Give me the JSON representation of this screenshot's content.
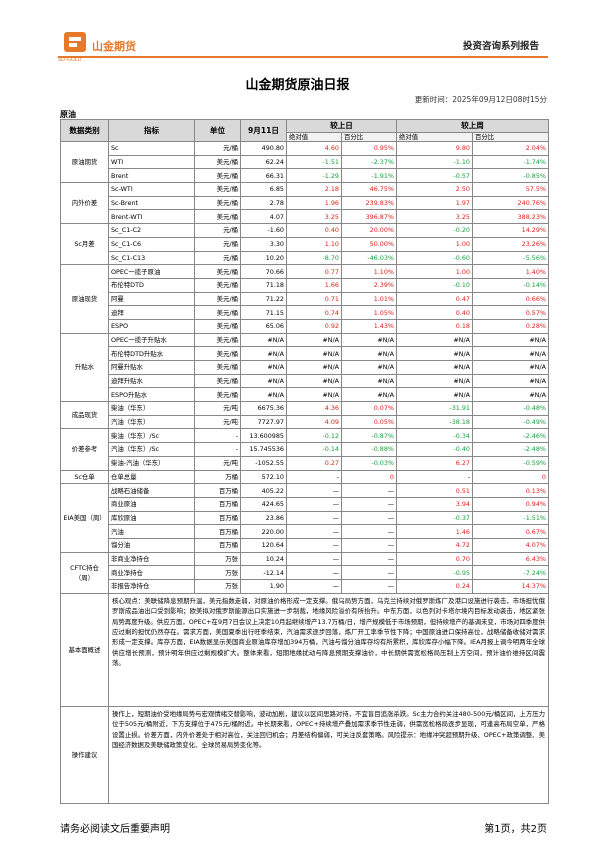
{
  "header": {
    "brand": "山金期货",
    "brand_en": "SD-GOLD",
    "series": "投资咨询系列报告"
  },
  "title": "山金期货原油日报",
  "update_time": "更新时间：2025年09月12日08时15分",
  "section": "原油",
  "table": {
    "headers": {
      "category": "数据类别",
      "indicator": "指标",
      "unit": "单位",
      "date": "9月11日",
      "day": "较上日",
      "week": "较上周",
      "abs": "绝对值",
      "pct": "百分比",
      "abs2": "绝对值",
      "pct2": "百分比"
    },
    "groups": [
      {
        "category": "原油期货",
        "rows": [
          [
            "Sc",
            "元/桶",
            "490.80",
            "4.60",
            "0.95%",
            "9.80",
            "2.04%"
          ],
          [
            "WTI",
            "美元/桶",
            "62.24",
            "-1.51",
            "-2.37%",
            "-1.10",
            "-1.74%"
          ],
          [
            "Brent",
            "美元/桶",
            "66.31",
            "-1.29",
            "-1.91%",
            "-0.57",
            "-0.85%"
          ]
        ]
      },
      {
        "category": "内外价差",
        "rows": [
          [
            "Sc-WTI",
            "美元/桶",
            "6.85",
            "2.18",
            "46.75%",
            "2.50",
            "57.5%"
          ],
          [
            "Sc-Brent",
            "美元/桶",
            "2.78",
            "1.96",
            "239.83%",
            "1.97",
            "240.76%"
          ],
          [
            "Brent-WTI",
            "美元/桶",
            "4.07",
            "3.25",
            "396.87%",
            "3.25",
            "388.23%"
          ]
        ]
      },
      {
        "category": "Sc月差",
        "rows": [
          [
            "Sc_C1-C2",
            "元/桶",
            "-1.60",
            "0.40",
            "20.00%",
            "-0.20",
            "14.29%"
          ],
          [
            "Sc_C1-C6",
            "元/桶",
            "3.30",
            "1.10",
            "50.00%",
            "1.00",
            "23.26%"
          ],
          [
            "Sc_C1-C13",
            "元/桶",
            "10.20",
            "-8.70",
            "-46.03%",
            "-0.60",
            "-5.56%"
          ]
        ]
      },
      {
        "category": "原油现货",
        "rows": [
          [
            "OPEC一揽子原油",
            "美元/桶",
            "70.66",
            "0.77",
            "1.10%",
            "1.00",
            "1.40%"
          ],
          [
            "布伦特DTD",
            "美元/桶",
            "71.18",
            "1.66",
            "2.39%",
            "-0.10",
            "-0.14%"
          ],
          [
            "阿曼",
            "美元/桶",
            "71.22",
            "0.71",
            "1.01%",
            "0.47",
            "0.66%"
          ],
          [
            "迪拜",
            "美元/桶",
            "71.15",
            "0.74",
            "1.05%",
            "0.40",
            "0.57%"
          ],
          [
            "ESPO",
            "美元/桶",
            "65.06",
            "0.92",
            "1.43%",
            "0.18",
            "0.28%"
          ]
        ]
      },
      {
        "category": "升贴水",
        "rows": [
          [
            "OPEC一揽子升贴水",
            "美元/桶",
            "#N/A",
            "#N/A",
            "#N/A",
            "#N/A",
            "#N/A"
          ],
          [
            "布伦特DTD升贴水",
            "美元/桶",
            "#N/A",
            "#N/A",
            "#N/A",
            "#N/A",
            "#N/A"
          ],
          [
            "阿曼升贴水",
            "美元/桶",
            "#N/A",
            "#N/A",
            "#N/A",
            "#N/A",
            "#N/A"
          ],
          [
            "迪拜升贴水",
            "美元/桶",
            "#N/A",
            "#N/A",
            "#N/A",
            "#N/A",
            "#N/A"
          ],
          [
            "ESPO升贴水",
            "美元/桶",
            "#N/A",
            "#N/A",
            "#N/A",
            "#N/A",
            "#N/A"
          ]
        ]
      },
      {
        "category": "成品现货",
        "rows": [
          [
            "柴油（华东）",
            "元/吨",
            "6675.36",
            "4.36",
            "0.07%",
            "-31.91",
            "-0.48%"
          ],
          [
            "汽油（华东）",
            "元/吨",
            "7727.97",
            "4.09",
            "0.05%",
            "-38.18",
            "-0.49%"
          ]
        ]
      },
      {
        "category": "价差参考",
        "rows": [
          [
            "柴油（华东）/Sc",
            "-",
            "13.600985",
            "-0.12",
            "-0.87%",
            "-0.34",
            "-2.46%"
          ],
          [
            "汽油（华东）/Sc",
            "-",
            "15.745536",
            "-0.14",
            "-0.88%",
            "-0.40",
            "-2.48%"
          ],
          [
            "柴油-汽油（华东）",
            "元/吨",
            "-1052.55",
            "0.27",
            "-0.03%",
            "6.27",
            "-0.59%"
          ]
        ]
      },
      {
        "category": "Sc仓单",
        "rows": [
          [
            "仓单总量",
            "万桶",
            "572.10",
            "-",
            "0",
            "-",
            "0"
          ]
        ]
      },
      {
        "category": "EIA美国（周）",
        "rows": [
          [
            "战略石油储备",
            "百万桶",
            "405.22",
            "—",
            "—",
            "0.51",
            "0.13%"
          ],
          [
            "商业原油",
            "百万桶",
            "424.65",
            "—",
            "—",
            "3.94",
            "0.94%"
          ],
          [
            "库欣原油",
            "百万桶",
            "23.86",
            "—",
            "—",
            "-0.37",
            "-1.51%"
          ],
          [
            "汽油",
            "百万桶",
            "220.00",
            "—",
            "—",
            "1.46",
            "0.67%"
          ],
          [
            "馏分油",
            "百万桶",
            "120.64",
            "—",
            "—",
            "4.72",
            "4.07%"
          ]
        ]
      },
      {
        "category": "CFTC持仓（周）",
        "rows": [
          [
            "非商业净持仓",
            "万张",
            "10.24",
            "—",
            "—",
            "0.70",
            "6.43%"
          ],
          [
            "商业净持仓",
            "万张",
            "-12.14",
            "—",
            "—",
            "-0.95",
            "-7.24%"
          ],
          [
            "非报告净持仓",
            "万张",
            "1.90",
            "—",
            "—",
            "0.24",
            "14.37%"
          ]
        ]
      }
    ]
  },
  "summary": {
    "label": "基本面概述",
    "text": "核心观点：美联储降息预期升温，美元指数走弱，对原油价格形成一定支撑。俄乌局势方面，乌克兰持续对俄罗斯炼厂及港口设施进行袭击，市场担忧俄罗斯成品油出口受到影响；欧美拟对俄罗斯能源出口实施进一步制裁，地缘风险溢价有所抬升。中东方面，以色列对卡塔尔境内目标发动袭击，地区紧张局势再度升级。供应方面，OPEC+在9月7日会议上决定10月起继续增产13.7万桶/日，增产规模低于市场预期，但持续增产的基调未变，市场对四季度供应过剩的担忧仍然存在。需求方面，美国夏季出行旺季结束，汽油需求逐步回落，炼厂开工率季节性下降；中国原油进口保持高位，战略储备收储对需求形成一定支撑。库存方面，EIA数据显示美国商业原油库存增加394万桶，汽油与馏分油库存均有所累积，库欣库存小幅下降。IEA月报上调今明两年全球供应增长预测，预计明年供应过剩规模扩大。整体来看，短期地缘扰动与降息预期支撑油价，中长期供需宽松格局压制上方空间，预计油价维持区间震荡。"
  },
  "advice": {
    "label": "操作建议",
    "text": "操作上，短期油价受地缘局势与宏观情绪交替影响，波动加剧，建议以区间思路对待，不宜盲目追涨杀跌。Sc主力合约关注480-500元/桶区间，上方压力位于505元/桶附近，下方支撑位于475元/桶附近。中长期来看，OPEC+持续增产叠加需求季节性走弱，供需宽松格局逐步显现，可逢高布局空单，严格设置止损。价差方面，内外价差处于相对高位，关注回归机会；月差结构偏弱，可关注反套策略。风险提示：地缘冲突超预期升级、OPEC+政策调整、美国经济数据及美联储政策变化、全球贸易局势变化等。"
  },
  "footer": {
    "disclaimer": "请务必阅读文后重要声明",
    "page": "第1页，共2页"
  }
}
